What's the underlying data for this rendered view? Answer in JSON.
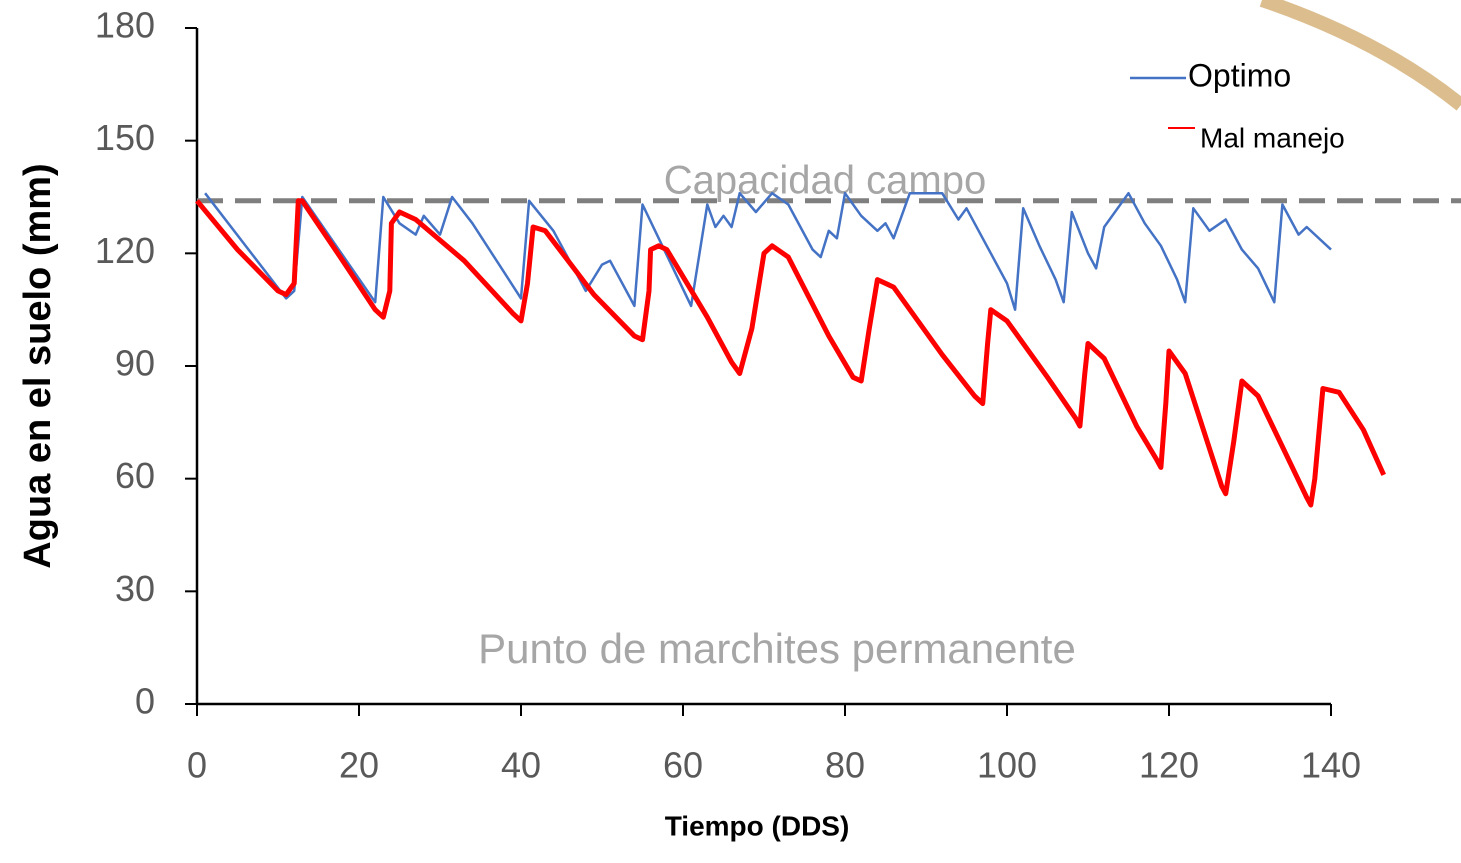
{
  "chart_data": {
    "type": "line",
    "xlabel": "Tiempo (DDS)",
    "ylabel": "Agua en el suelo (mm)",
    "xlim": [
      0,
      140
    ],
    "ylim": [
      0,
      180
    ],
    "xticks": [
      0,
      20,
      40,
      60,
      80,
      100,
      120,
      140
    ],
    "yticks": [
      0,
      30,
      60,
      90,
      120,
      150,
      180
    ],
    "legend": "upper right",
    "reference_line": {
      "value": 134,
      "label": "Capacidad campo",
      "color": "#7f7f7f"
    },
    "annotation": "Punto de marchites permanente",
    "series": [
      {
        "name": "Optimo",
        "color": "#4472c4",
        "x": [
          1,
          11,
          12,
          13,
          22,
          23,
          25,
          27,
          28,
          30,
          31.5,
          34,
          40,
          41,
          44,
          48,
          50,
          51,
          54,
          55,
          57,
          61,
          63,
          64,
          65,
          66,
          67,
          69,
          71,
          73,
          76,
          77,
          78,
          79,
          80,
          82,
          84,
          85,
          86,
          88,
          92,
          94,
          95,
          98,
          100,
          101,
          102,
          104,
          106,
          107,
          108,
          110,
          111,
          112,
          115,
          117,
          119,
          121,
          122,
          123,
          125,
          127,
          129,
          131,
          133,
          134,
          136,
          137,
          140
        ],
        "values": [
          136,
          108,
          110,
          135,
          107,
          135,
          128,
          125,
          130,
          125,
          135,
          128,
          108,
          134,
          126,
          110,
          117,
          118,
          106,
          133,
          124,
          106,
          133,
          127,
          130,
          127,
          136,
          131,
          136,
          133,
          121,
          119,
          126,
          124,
          136,
          130,
          126,
          128,
          124,
          136,
          136,
          129,
          132,
          120,
          112,
          105,
          132,
          122,
          113,
          107,
          131,
          120,
          116,
          127,
          136,
          128,
          122,
          113,
          107,
          132,
          126,
          129,
          121,
          116,
          107,
          133,
          125,
          127,
          121
        ]
      },
      {
        "name": "Mal manejo",
        "color": "#ff0000",
        "x": [
          0,
          5,
          10,
          11,
          12,
          12.5,
          13,
          18,
          22,
          23,
          23.8,
          24,
          25,
          27,
          33,
          39,
          40,
          40.8,
          41.5,
          43,
          49,
          54,
          55,
          55.8,
          56,
          57,
          58,
          63,
          66,
          67,
          68.5,
          70,
          71,
          73,
          78,
          81,
          82,
          83,
          84,
          86,
          92,
          96,
          97,
          97.6,
          98,
          100,
          105,
          108.5,
          109,
          109.6,
          110,
          112,
          116,
          118.5,
          119,
          119.6,
          120,
          122,
          125,
          126.5,
          127,
          128,
          129,
          131,
          135,
          137,
          137.5,
          138,
          139,
          141,
          144,
          146.5
        ],
        "values": [
          134,
          121,
          110,
          109,
          112,
          134,
          134,
          118,
          105,
          103,
          110,
          128,
          131,
          129,
          118,
          104,
          102,
          112,
          127,
          126,
          109,
          98,
          97,
          110,
          121,
          122,
          121,
          103,
          91,
          88,
          100,
          120,
          122,
          119,
          98,
          87,
          86,
          100,
          113,
          111,
          93,
          82,
          80,
          96,
          105,
          102,
          87,
          76,
          74,
          88,
          96,
          92,
          74,
          65,
          63,
          80,
          94,
          88,
          68,
          58,
          56,
          70,
          86,
          82,
          64,
          55,
          53,
          60,
          84,
          83,
          73,
          61
        ]
      }
    ]
  }
}
